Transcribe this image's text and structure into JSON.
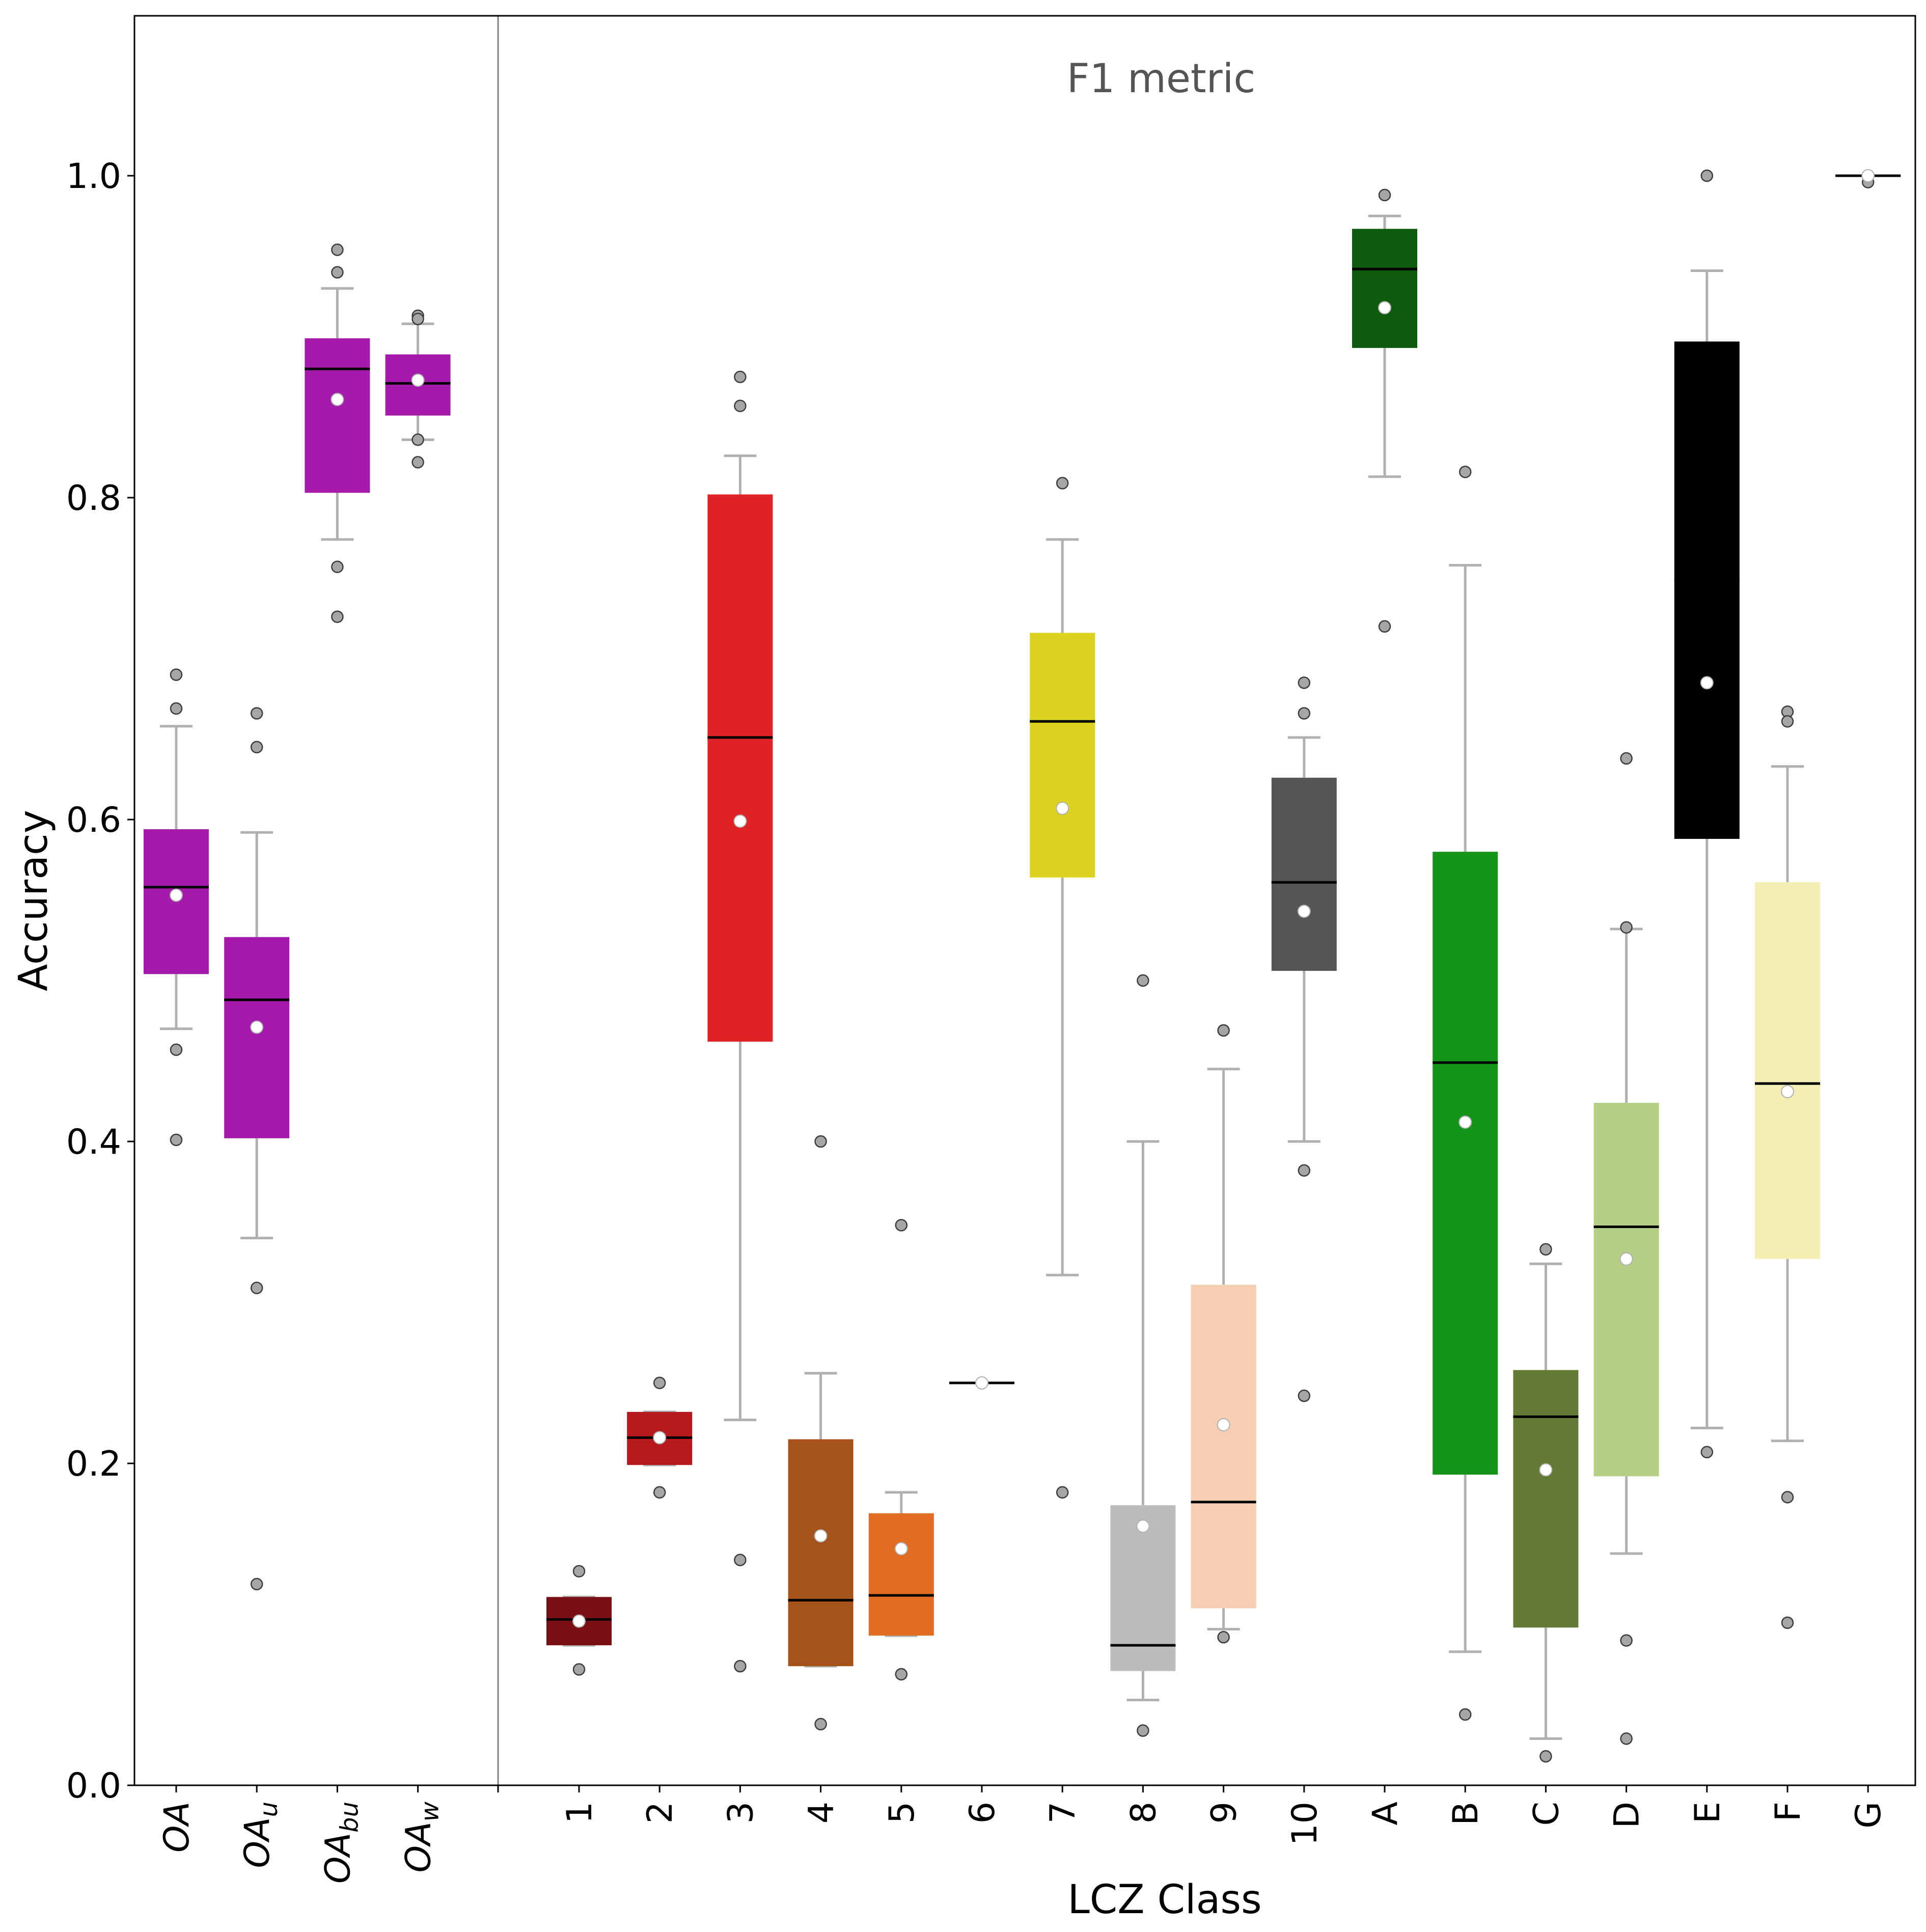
{
  "chart_data": {
    "type": "box",
    "title": "F1 metric",
    "xlabel": "LCZ Class",
    "ylabel": "Accuracy",
    "ylim": [
      0.0,
      1.1
    ],
    "yticks": [
      "0.0",
      "0.2",
      "0.4",
      "0.6",
      "0.8",
      "1.0"
    ],
    "grid": false,
    "groups": [
      {
        "name": "overall",
        "categories": [
          "OA",
          "OA_u",
          "OA_bu",
          "OA_w"
        ]
      },
      {
        "name": "lcz",
        "categories": [
          "1",
          "2",
          "3",
          "4",
          "5",
          "6",
          "7",
          "8",
          "9",
          "10",
          "A",
          "B",
          "C",
          "D",
          "E",
          "F",
          "G"
        ]
      }
    ],
    "series": [
      {
        "label": "OA",
        "base": "OA",
        "sub": "",
        "group": 0,
        "color": "#a61aab",
        "q1": 0.504,
        "median": 0.558,
        "q3": 0.594,
        "mean": 0.553,
        "whisker_low": 0.47,
        "whisker_high": 0.658,
        "outliers": [
          0.69,
          0.669,
          0.457,
          0.401
        ]
      },
      {
        "label": "OA_u",
        "base": "OA",
        "sub": "u",
        "group": 0,
        "color": "#a61aab",
        "q1": 0.402,
        "median": 0.488,
        "q3": 0.527,
        "mean": 0.471,
        "whisker_low": 0.34,
        "whisker_high": 0.592,
        "outliers": [
          0.666,
          0.645,
          0.309,
          0.125
        ]
      },
      {
        "label": "OA_bu",
        "base": "OA",
        "sub": "bu",
        "group": 0,
        "color": "#a61aab",
        "q1": 0.803,
        "median": 0.88,
        "q3": 0.899,
        "mean": 0.861,
        "whisker_low": 0.774,
        "whisker_high": 0.93,
        "outliers": [
          0.954,
          0.94,
          0.757,
          0.726
        ]
      },
      {
        "label": "OA_w",
        "base": "OA",
        "sub": "w",
        "group": 0,
        "color": "#a61aab",
        "q1": 0.851,
        "median": 0.871,
        "q3": 0.889,
        "mean": 0.873,
        "whisker_low": 0.836,
        "whisker_high": 0.908,
        "outliers": [
          0.913,
          0.911,
          0.836,
          0.822
        ]
      },
      {
        "label": "1",
        "group": 1,
        "color": "#7a1015",
        "q1": 0.087,
        "median": 0.103,
        "q3": 0.117,
        "mean": 0.102,
        "whisker_low": 0.087,
        "whisker_high": 0.117,
        "outliers": [
          0.133,
          0.072
        ]
      },
      {
        "label": "2",
        "group": 1,
        "color": "#b61a1d",
        "q1": 0.199,
        "median": 0.216,
        "q3": 0.232,
        "mean": 0.216,
        "whisker_low": 0.199,
        "whisker_high": 0.232,
        "outliers": [
          0.25,
          0.182
        ]
      },
      {
        "label": "3",
        "group": 1,
        "color": "#de2226",
        "q1": 0.462,
        "median": 0.651,
        "q3": 0.802,
        "mean": 0.599,
        "whisker_low": 0.227,
        "whisker_high": 0.826,
        "outliers": [
          0.875,
          0.857,
          0.14,
          0.074
        ]
      },
      {
        "label": "4",
        "group": 1,
        "color": "#a5521b",
        "q1": 0.074,
        "median": 0.115,
        "q3": 0.215,
        "mean": 0.155,
        "whisker_low": 0.074,
        "whisker_high": 0.256,
        "outliers": [
          0.4,
          0.038
        ]
      },
      {
        "label": "5",
        "group": 1,
        "color": "#e06d22",
        "q1": 0.093,
        "median": 0.118,
        "q3": 0.169,
        "mean": 0.147,
        "whisker_low": 0.093,
        "whisker_high": 0.182,
        "outliers": [
          0.348,
          0.069
        ]
      },
      {
        "label": "6",
        "group": 1,
        "color": "#c9a27c",
        "q1": 0.25,
        "median": 0.25,
        "q3": 0.25,
        "mean": 0.25,
        "whisker_low": 0.25,
        "whisker_high": 0.25,
        "outliers": []
      },
      {
        "label": "7",
        "group": 1,
        "color": "#dbd320",
        "q1": 0.564,
        "median": 0.661,
        "q3": 0.716,
        "mean": 0.607,
        "whisker_low": 0.317,
        "whisker_high": 0.774,
        "outliers": [
          0.809,
          0.182
        ]
      },
      {
        "label": "8",
        "group": 1,
        "color": "#bcbcbc",
        "q1": 0.071,
        "median": 0.087,
        "q3": 0.174,
        "mean": 0.161,
        "whisker_low": 0.053,
        "whisker_high": 0.4,
        "outliers": [
          0.5,
          0.034
        ]
      },
      {
        "label": "9",
        "group": 1,
        "color": "#f5ceb3",
        "q1": 0.11,
        "median": 0.176,
        "q3": 0.311,
        "mean": 0.224,
        "whisker_low": 0.097,
        "whisker_high": 0.445,
        "outliers": [
          0.469,
          0.092
        ]
      },
      {
        "label": "10",
        "group": 1,
        "color": "#555555",
        "q1": 0.506,
        "median": 0.561,
        "q3": 0.626,
        "mean": 0.543,
        "whisker_low": 0.4,
        "whisker_high": 0.651,
        "outliers": [
          0.685,
          0.666,
          0.382,
          0.242
        ]
      },
      {
        "label": "A",
        "group": 1,
        "color": "#0f5b0e",
        "q1": 0.893,
        "median": 0.942,
        "q3": 0.967,
        "mean": 0.918,
        "whisker_low": 0.813,
        "whisker_high": 0.975,
        "outliers": [
          0.988,
          0.72
        ]
      },
      {
        "label": "B",
        "group": 1,
        "color": "#14951a",
        "q1": 0.193,
        "median": 0.449,
        "q3": 0.58,
        "mean": 0.412,
        "whisker_low": 0.083,
        "whisker_high": 0.758,
        "outliers": [
          0.816,
          0.044
        ]
      },
      {
        "label": "C",
        "group": 1,
        "color": "#627a34",
        "q1": 0.098,
        "median": 0.229,
        "q3": 0.258,
        "mean": 0.196,
        "whisker_low": 0.029,
        "whisker_high": 0.324,
        "outliers": [
          0.333,
          0.018
        ]
      },
      {
        "label": "D",
        "group": 1,
        "color": "#b4cf84",
        "q1": 0.192,
        "median": 0.347,
        "q3": 0.424,
        "mean": 0.327,
        "whisker_low": 0.144,
        "whisker_high": 0.532,
        "outliers": [
          0.638,
          0.533,
          0.09,
          0.029
        ]
      },
      {
        "label": "E",
        "group": 1,
        "color": "#000000",
        "q1": 0.588,
        "median": 0.749,
        "q3": 0.897,
        "mean": 0.685,
        "whisker_low": 0.222,
        "whisker_high": 0.941,
        "outliers": [
          1.0,
          0.207
        ]
      },
      {
        "label": "F",
        "group": 1,
        "color": "#f3efb4",
        "q1": 0.327,
        "median": 0.436,
        "q3": 0.561,
        "mean": 0.431,
        "whisker_low": 0.214,
        "whisker_high": 0.633,
        "outliers": [
          0.667,
          0.661,
          0.179,
          0.101
        ]
      },
      {
        "label": "G",
        "group": 1,
        "color": "#e0e0e0",
        "q1": 1.0,
        "median": 1.0,
        "q3": 1.0,
        "mean": 1.0,
        "whisker_low": 1.0,
        "whisker_high": 1.0,
        "outliers": [
          0.996
        ]
      }
    ]
  }
}
